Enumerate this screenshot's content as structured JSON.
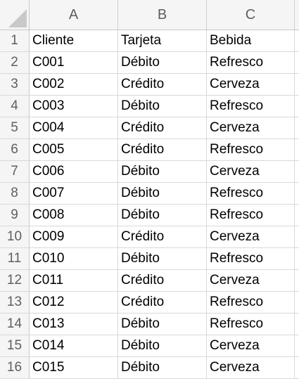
{
  "columns": [
    "A",
    "B",
    "C"
  ],
  "row_numbers": [
    "1",
    "2",
    "3",
    "4",
    "5",
    "6",
    "7",
    "8",
    "9",
    "10",
    "11",
    "12",
    "13",
    "14",
    "15",
    "16"
  ],
  "rows": [
    [
      "Cliente",
      "Tarjeta",
      "Bebida"
    ],
    [
      "C001",
      "Débito",
      "Refresco"
    ],
    [
      "C002",
      "Crédito",
      "Cerveza"
    ],
    [
      "C003",
      "Débito",
      "Refresco"
    ],
    [
      "C004",
      "Crédito",
      "Cerveza"
    ],
    [
      "C005",
      "Crédito",
      "Refresco"
    ],
    [
      "C006",
      "Débito",
      "Cerveza"
    ],
    [
      "C007",
      "Débito",
      "Refresco"
    ],
    [
      "C008",
      "Débito",
      "Refresco"
    ],
    [
      "C009",
      "Crédito",
      "Cerveza"
    ],
    [
      "C010",
      "Débito",
      "Refresco"
    ],
    [
      "C011",
      "Crédito",
      "Cerveza"
    ],
    [
      "C012",
      "Crédito",
      "Refresco"
    ],
    [
      "C013",
      "Débito",
      "Refresco"
    ],
    [
      "C014",
      "Débito",
      "Cerveza"
    ],
    [
      "C015",
      "Débito",
      "Cerveza"
    ]
  ]
}
